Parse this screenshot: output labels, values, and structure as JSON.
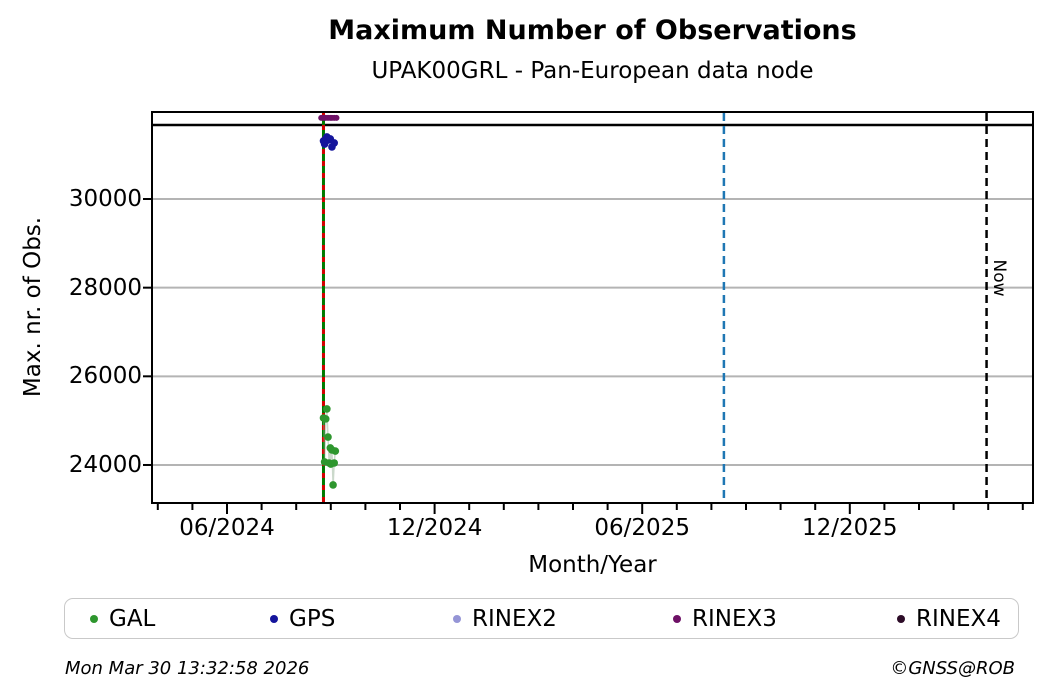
{
  "title": "Maximum Number of Observations",
  "subtitle": "UPAK00GRL - Pan-European data node",
  "footer": {
    "timestamp": "Mon Mar 30 13:32:58 2026",
    "credit": "©GNSS@ROB"
  },
  "legend": {
    "items": [
      {
        "label": "GAL",
        "color": "#2e962e"
      },
      {
        "label": "GPS",
        "color": "#15159c"
      },
      {
        "label": "RINEX2",
        "color": "#9595d6"
      },
      {
        "label": "RINEX3",
        "color": "#6e1166"
      },
      {
        "label": "RINEX4",
        "color": "#2d0c28"
      }
    ]
  },
  "chart_data": {
    "type": "scatter",
    "title": "Maximum Number of Observations",
    "subtitle": "UPAK00GRL - Pan-European data node",
    "xlabel": "Month/Year",
    "ylabel": "Max. nr. of Obs.",
    "xlim": [
      "2024-03-27",
      "2026-05-09"
    ],
    "ylim": [
      23165,
      31940
    ],
    "grid": "horizontal-gridlines-only",
    "legend_position": "bottom",
    "x_tick_labels": [
      {
        "label": "06/2024",
        "date": "2024-06-01"
      },
      {
        "label": "12/2024",
        "date": "2024-12-01"
      },
      {
        "label": "06/2025",
        "date": "2025-06-01"
      },
      {
        "label": "12/2025",
        "date": "2025-12-01"
      }
    ],
    "x_minor_ticks": "monthly",
    "y_ticks": [
      24000,
      26000,
      28000,
      30000
    ],
    "series": [
      {
        "name": "GAL",
        "color": "#2e962e",
        "marker": "circle",
        "line": "faint",
        "points": [
          [
            "2024-08-25",
            25060
          ],
          [
            "2024-08-26",
            24070
          ],
          [
            "2024-08-27",
            25040
          ],
          [
            "2024-08-28",
            25265
          ],
          [
            "2024-08-29",
            24630
          ],
          [
            "2024-08-30",
            24045
          ],
          [
            "2024-08-31",
            24385
          ],
          [
            "2024-09-01",
            24020
          ],
          [
            "2024-09-02",
            24340
          ],
          [
            "2024-09-03",
            23550
          ],
          [
            "2024-09-04",
            24045
          ],
          [
            "2024-09-05",
            24315
          ]
        ]
      },
      {
        "name": "GPS",
        "color": "#15159c",
        "marker": "circle",
        "points": [
          [
            "2024-08-25",
            31310
          ],
          [
            "2024-08-26",
            31240
          ],
          [
            "2024-08-27",
            31355
          ],
          [
            "2024-08-28",
            31400
          ],
          [
            "2024-08-29",
            31330
          ],
          [
            "2024-08-31",
            31355
          ],
          [
            "2024-09-02",
            31175
          ],
          [
            "2024-09-04",
            31265
          ]
        ]
      },
      {
        "name": "RINEX2",
        "color": "#9595d6",
        "marker": "circle",
        "points": []
      },
      {
        "name": "RINEX3",
        "color": "#6e1166",
        "marker": "circle",
        "points": [
          [
            "2024-08-23",
            31830
          ],
          [
            "2024-08-25",
            31830
          ],
          [
            "2024-08-27",
            31830
          ],
          [
            "2024-08-29",
            31830
          ],
          [
            "2024-08-31",
            31830
          ],
          [
            "2024-09-02",
            31830
          ],
          [
            "2024-09-04",
            31830
          ],
          [
            "2024-09-06",
            31830
          ]
        ]
      },
      {
        "name": "RINEX4",
        "color": "#2d0c28",
        "marker": "circle",
        "points": []
      }
    ],
    "reference_lines": {
      "horizontal": [
        {
          "value": 31670,
          "color": "#000000",
          "style": "solid"
        }
      ],
      "vertical": [
        {
          "date": "2024-08-25",
          "color": "#007a00",
          "style": "solid",
          "overlay_color": "#d40000",
          "overlay_style": "dashed",
          "label": ""
        },
        {
          "date": "2025-08-12",
          "color": "#1f77b4",
          "style": "dashed",
          "label": ""
        },
        {
          "date": "2026-03-30",
          "color": "#000000",
          "style": "dashed",
          "label": "Now"
        }
      ]
    }
  }
}
